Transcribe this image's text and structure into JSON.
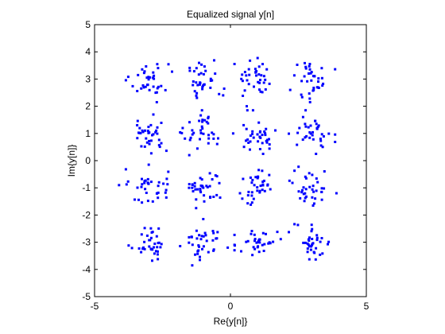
{
  "figure": {
    "title": "Equalized signal y[n]"
  },
  "chart_data": {
    "type": "scatter",
    "title": "Equalized signal y[n]",
    "xlabel": "Re{y[n]}",
    "ylabel": "Im{y[n]}",
    "xlim": [
      -5,
      5
    ],
    "ylim": [
      -5,
      5
    ],
    "xticks": [
      -5,
      0,
      5
    ],
    "yticks": [
      -5,
      -4,
      -3,
      -2,
      -1,
      0,
      1,
      2,
      3,
      4,
      5
    ],
    "grid": false,
    "legend": "none",
    "marker_color": "#0000ff",
    "marker": "dot",
    "constellation": "16-QAM",
    "cluster_centers": {
      "x": [
        -3,
        -1,
        1,
        3
      ],
      "y": [
        -3,
        -1,
        1,
        3
      ]
    },
    "points_per_cluster": 36,
    "noise_spread": 0.35,
    "outliers": [
      {
        "x": -4.1,
        "y": -0.9
      },
      {
        "x": 0.1,
        "y": 1.0
      },
      {
        "x": -0.1,
        "y": -3.2
      },
      {
        "x": 3.9,
        "y": -1.2
      },
      {
        "x": 0.6,
        "y": 2.0
      },
      {
        "x": 2.2,
        "y": 2.6
      }
    ]
  }
}
